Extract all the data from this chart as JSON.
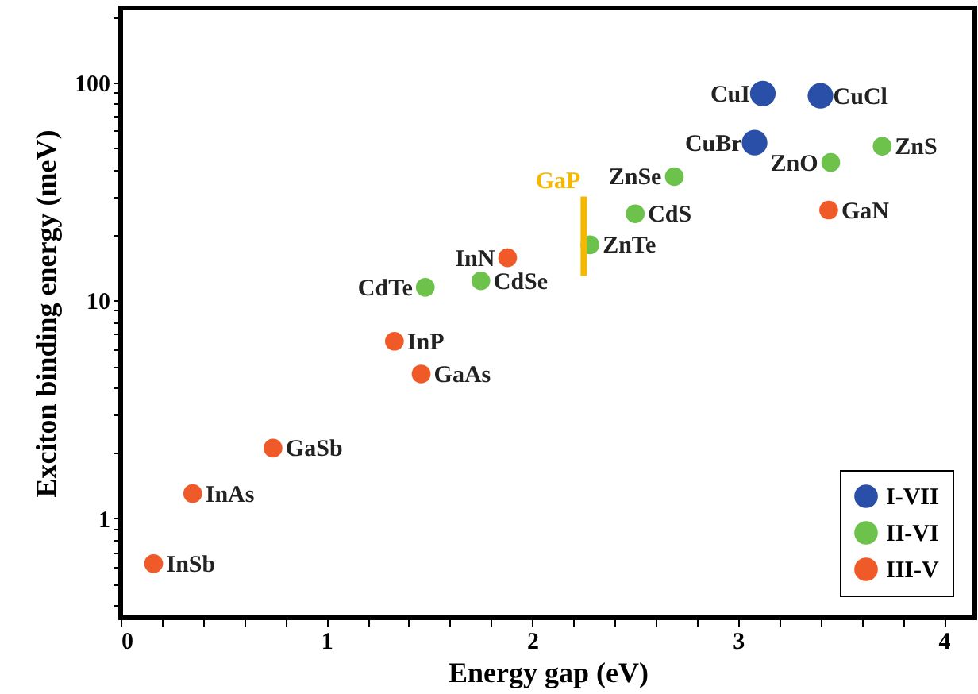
{
  "chart_data": {
    "type": "scatter",
    "xlabel": "Energy gap (eV)",
    "ylabel": "Exciton binding energy (meV)",
    "log": "y",
    "grid": false,
    "legend": "bottom right",
    "xlim": [
      0,
      4.15
    ],
    "ylim": [
      0.35,
      220
    ],
    "xticks": [
      0,
      {
        "value": 0.2,
        "label": null
      },
      {
        "value": 0.4,
        "label": null
      },
      {
        "value": 0.6,
        "label": null
      },
      {
        "value": 0.8,
        "label": null
      },
      1,
      {
        "value": 1.2,
        "label": null
      },
      {
        "value": 1.4,
        "label": null
      },
      {
        "value": 1.6,
        "label": null
      },
      {
        "value": 1.8,
        "label": null
      },
      2,
      {
        "value": 2.2,
        "label": null
      },
      {
        "value": 2.4,
        "label": null
      },
      {
        "value": 2.6,
        "label": null
      },
      {
        "value": 2.8,
        "label": null
      },
      3,
      {
        "value": 3.2,
        "label": null
      },
      {
        "value": 3.4,
        "label": null
      },
      {
        "value": 3.6,
        "label": null
      },
      {
        "value": 3.8,
        "label": null
      },
      4
    ],
    "yticks": [
      {
        "value": 0.4,
        "label": null
      },
      {
        "value": 0.5,
        "label": null
      },
      {
        "value": 0.6,
        "label": null
      },
      {
        "value": 0.7,
        "label": null
      },
      {
        "value": 0.8,
        "label": null
      },
      {
        "value": 0.9,
        "label": null
      },
      1,
      {
        "value": 2,
        "label": null
      },
      {
        "value": 3,
        "label": null
      },
      {
        "value": 4,
        "label": null
      },
      {
        "value": 5,
        "label": null
      },
      {
        "value": 6,
        "label": null
      },
      {
        "value": 7,
        "label": null
      },
      {
        "value": 8,
        "label": null
      },
      {
        "value": 9,
        "label": null
      },
      10,
      {
        "value": 20,
        "label": null
      },
      {
        "value": 30,
        "label": null
      },
      {
        "value": 40,
        "label": null
      },
      {
        "value": 50,
        "label": null
      },
      {
        "value": 60,
        "label": null
      },
      {
        "value": 70,
        "label": null
      },
      {
        "value": 80,
        "label": null
      },
      {
        "value": 90,
        "label": null
      },
      100,
      {
        "value": 200,
        "label": null
      }
    ],
    "series": [
      {
        "name": "I-VII",
        "color": "#2a4fa8",
        "x": [
          3.08,
          3.12,
          3.4
        ],
        "values": [
          53,
          89,
          87
        ]
      },
      {
        "name": "II-VI",
        "color": "#6cc24a",
        "x": [
          1.48,
          1.75,
          2.28,
          2.5,
          2.69,
          3.45,
          3.7
        ],
        "values": [
          11.5,
          12.3,
          18,
          25,
          37,
          43,
          51
        ]
      },
      {
        "name": "III-V",
        "color": "#f05a28",
        "x": [
          0.16,
          0.35,
          0.74,
          1.33,
          1.46,
          1.88,
          3.44
        ],
        "values": [
          0.62,
          1.3,
          2.1,
          6.5,
          4.6,
          15.7,
          26
        ]
      },
      {
        "name": "GaP",
        "type": "line",
        "color": "#f5b800",
        "x": [
          2.25,
          2.25
        ],
        "values": [
          13,
          30
        ]
      }
    ],
    "annotations": [
      {
        "text": "InSb",
        "x": 0.16,
        "y": 0.62
      },
      {
        "text": "InAs",
        "x": 0.35,
        "y": 1.3
      },
      {
        "text": "GaSb",
        "x": 0.74,
        "y": 2.1
      },
      {
        "text": "InP",
        "x": 1.33,
        "y": 6.5
      },
      {
        "text": "GaAs",
        "x": 1.46,
        "y": 4.6
      },
      {
        "text": "CdTe",
        "x": 1.48,
        "y": 11.5
      },
      {
        "text": "CdSe",
        "x": 1.75,
        "y": 12.3
      },
      {
        "text": "InN",
        "x": 1.88,
        "y": 15.7
      },
      {
        "text": "ZnTe",
        "x": 2.28,
        "y": 18
      },
      {
        "text": "CdS",
        "x": 2.5,
        "y": 25
      },
      {
        "text": "ZnSe",
        "x": 2.69,
        "y": 37
      },
      {
        "text": "GaN",
        "x": 3.44,
        "y": 26
      },
      {
        "text": "ZnO",
        "x": 3.45,
        "y": 43
      },
      {
        "text": "ZnS",
        "x": 3.7,
        "y": 51
      },
      {
        "text": "CuBr",
        "x": 3.08,
        "y": 53
      },
      {
        "text": "CuI",
        "x": 3.12,
        "y": 89
      },
      {
        "text": "CuCl",
        "x": 3.4,
        "y": 87
      }
    ]
  }
}
